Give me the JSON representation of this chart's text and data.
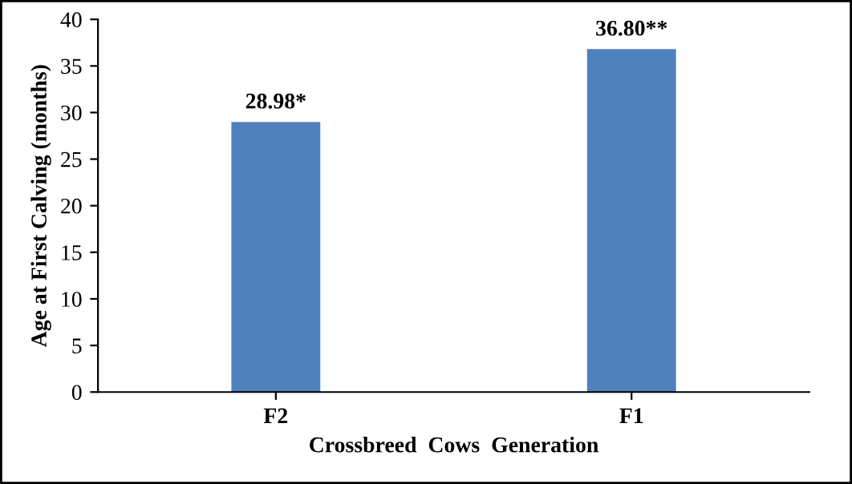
{
  "chart_data": {
    "type": "bar",
    "xlabel": "Crossbreed  Cows  Generation",
    "ylabel": "Age at First Calving (months)",
    "categories": [
      "F2",
      "F1"
    ],
    "values": [
      28.98,
      36.8
    ],
    "value_labels": [
      "28.98*",
      "36.80**"
    ],
    "color": "#4f81bd",
    "ylim": [
      0,
      40
    ],
    "yticks": [
      0,
      5,
      10,
      15,
      20,
      25,
      30,
      35,
      40
    ],
    "grid": false,
    "legend": false
  }
}
